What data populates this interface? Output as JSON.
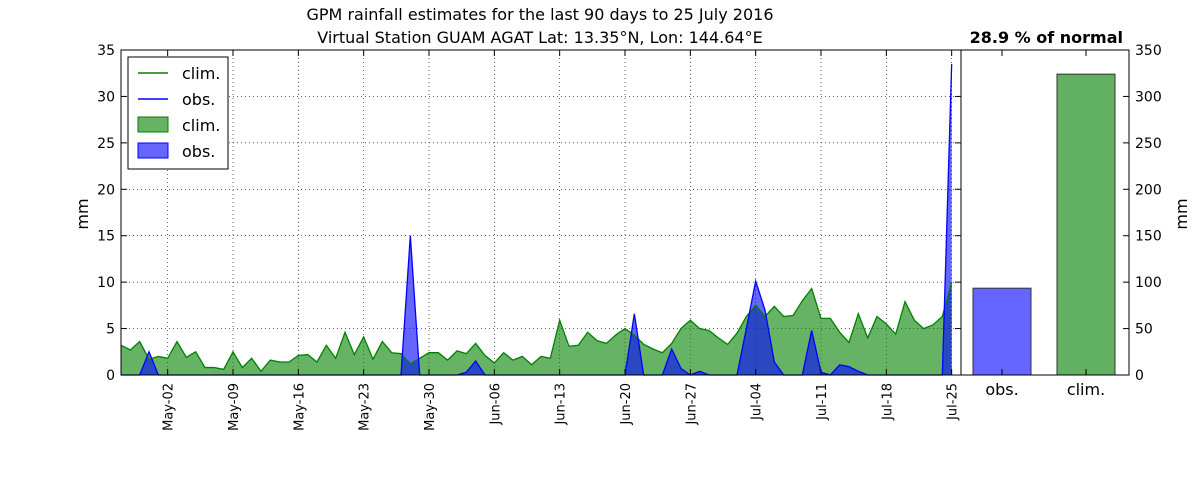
{
  "title": {
    "line1": "GPM rainfall estimates for the last 90 days to 25 July 2016",
    "line2": "Virtual Station GUAM AGAT Lat: 13.35°N, Lon: 144.64°E"
  },
  "percent_label": "28.9 % of normal",
  "legend": [
    {
      "label": "clim.",
      "kind": "line",
      "color": "#008000"
    },
    {
      "label": "obs.",
      "kind": "line",
      "color": "#0000ff"
    },
    {
      "label": "clim.",
      "kind": "patch",
      "color": "#008000"
    },
    {
      "label": "obs.",
      "kind": "patch",
      "color": "#0000ff"
    }
  ],
  "colors": {
    "clim": "#008000",
    "obs": "#0000ff",
    "clim_fill": "#62b162",
    "obs_fill": "#6565ff"
  },
  "chart_data": [
    {
      "type": "area",
      "xlabel": "",
      "ylabel": "mm",
      "ylim": [
        0,
        35
      ],
      "yticks": [
        0,
        5,
        10,
        15,
        20,
        25,
        30,
        35
      ],
      "x_start": "2016-04-27",
      "x_end": "2016-07-26",
      "xtick_labels": [
        "May-02",
        "May-09",
        "May-16",
        "May-23",
        "May-30",
        "Jun-06",
        "Jun-13",
        "Jun-20",
        "Jun-27",
        "Jul-04",
        "Jul-11",
        "Jul-18",
        "Jul-25"
      ],
      "grid": true,
      "legend_position": "top-left",
      "series": [
        {
          "name": "clim.",
          "values": [
            3.2,
            2.7,
            3.6,
            1.7,
            2.0,
            1.8,
            3.6,
            1.9,
            2.5,
            0.8,
            0.8,
            0.6,
            2.5,
            0.8,
            1.8,
            0.4,
            1.6,
            1.4,
            1.4,
            2.1,
            2.2,
            1.4,
            3.2,
            1.8,
            4.6,
            2.2,
            4.1,
            1.7,
            3.6,
            2.4,
            2.3,
            1.2,
            1.8,
            2.4,
            2.4,
            1.6,
            2.6,
            2.3,
            3.4,
            2.1,
            1.3,
            2.4,
            1.6,
            2.0,
            1.1,
            2.0,
            1.8,
            5.9,
            3.1,
            3.2,
            4.6,
            3.7,
            3.4,
            4.3,
            5.0,
            4.3,
            3.3,
            2.8,
            2.4,
            3.4,
            5.0,
            5.9,
            5.0,
            4.8,
            4.0,
            3.3,
            4.5,
            6.3,
            7.5,
            6.3,
            7.4,
            6.3,
            6.4,
            8.0,
            9.3,
            6.1,
            6.1,
            4.6,
            3.5,
            6.6,
            4.0,
            6.3,
            5.5,
            4.4,
            7.9,
            5.9,
            5.0,
            5.4,
            6.3,
            10.0
          ]
        },
        {
          "name": "obs.",
          "values": [
            0,
            0,
            0,
            2.5,
            0,
            0,
            0,
            0,
            0,
            0,
            0,
            0,
            0,
            0,
            0,
            0,
            0,
            0,
            0,
            0,
            0,
            0,
            0,
            0,
            0,
            0,
            0,
            0,
            0,
            0,
            0,
            15.0,
            0,
            0,
            0,
            0,
            0,
            0.3,
            1.5,
            0,
            0,
            0,
            0,
            0,
            0,
            0,
            0,
            0,
            0,
            0,
            0,
            0,
            0,
            0,
            0,
            6.6,
            0,
            0,
            0,
            2.8,
            0.7,
            0,
            0.4,
            0,
            0,
            0,
            0,
            5.0,
            10.1,
            7.0,
            1.4,
            0,
            0,
            0,
            4.8,
            0.3,
            0,
            1.1,
            0.9,
            0.4,
            0,
            0,
            0,
            0,
            0,
            0,
            0,
            0,
            0,
            33.5
          ]
        }
      ]
    },
    {
      "type": "bar",
      "categories": [
        "obs.",
        "clim."
      ],
      "values": [
        93.5,
        324.0
      ],
      "ylabel": "mm",
      "ylim": [
        0,
        350
      ],
      "yticks": [
        0,
        50,
        100,
        150,
        200,
        250,
        300,
        350
      ]
    }
  ]
}
